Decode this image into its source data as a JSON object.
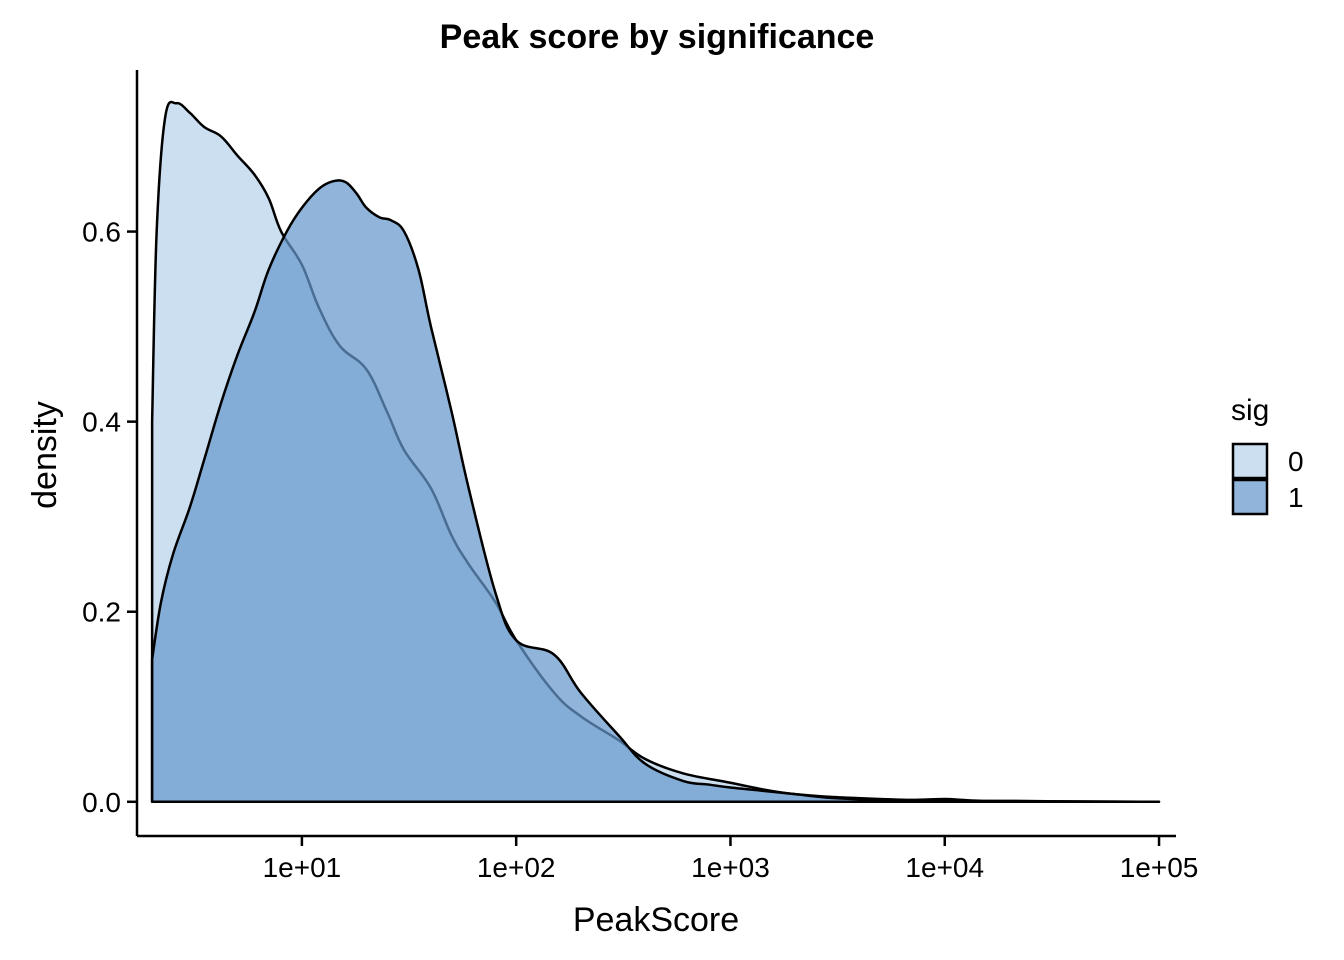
{
  "chart_data": {
    "type": "area",
    "title": "Peak score by significance",
    "xlabel": "PeakScore",
    "ylabel": "density",
    "x_scale": "log10",
    "xlim": [
      1.7,
      120000
    ],
    "ylim": [
      -0.036,
      0.77
    ],
    "x_ticks": [
      10,
      100,
      1000,
      10000,
      100000
    ],
    "x_tick_labels": [
      "1e+01",
      "1e+02",
      "1e+03",
      "1e+04",
      "1e+05"
    ],
    "y_ticks": [
      0.0,
      0.2,
      0.4,
      0.6
    ],
    "y_tick_labels": [
      "0.0",
      "0.2",
      "0.4",
      "0.6"
    ],
    "grid": false,
    "legend": {
      "title": "sig",
      "position": "right"
    },
    "series": [
      {
        "name": "0",
        "color": "#c6dbef",
        "opacity": 0.9,
        "x": [
          2.0,
          2.0,
          2.1,
          2.3,
          2.6,
          3.0,
          3.5,
          4.2,
          5.0,
          6.0,
          7.0,
          8.0,
          10.0,
          12.0,
          15.0,
          20.0,
          25.0,
          30.0,
          40.0,
          50.0,
          60.0,
          80.0,
          100.0,
          150.0,
          200.0,
          300.0,
          400.0,
          600.0,
          1000.0,
          1500.0,
          2000.0,
          3000.0,
          5000.0,
          7000.0,
          10000.0,
          12000.0,
          15000.0,
          20000.0,
          30000.0,
          50000.0,
          80000.0,
          100000.0
        ],
        "y": [
          0.0,
          0.4,
          0.6,
          0.72,
          0.735,
          0.725,
          0.71,
          0.7,
          0.68,
          0.66,
          0.635,
          0.6,
          0.565,
          0.52,
          0.48,
          0.455,
          0.41,
          0.37,
          0.33,
          0.28,
          0.25,
          0.21,
          0.17,
          0.115,
          0.09,
          0.065,
          0.045,
          0.03,
          0.02,
          0.012,
          0.008,
          0.005,
          0.003,
          0.002,
          0.003,
          0.002,
          0.001,
          0.001,
          0.0005,
          0.0003,
          0.0001,
          0.0
        ]
      },
      {
        "name": "1",
        "color": "#6699cc",
        "opacity": 0.72,
        "x": [
          2.0,
          2.0,
          2.2,
          2.5,
          3.0,
          3.5,
          4.2,
          5.0,
          6.0,
          7.0,
          8.5,
          10.0,
          12.0,
          14.0,
          16.0,
          18.0,
          20.0,
          23.0,
          26.0,
          30.0,
          35.0,
          40.0,
          50.0,
          60.0,
          80.0,
          100.0,
          150.0,
          200.0,
          300.0,
          400.0,
          600.0,
          800.0,
          1000.0,
          1500.0,
          2000.0,
          3000.0,
          5000.0,
          10000.0,
          20000.0,
          50000.0,
          100000.0
        ],
        "y": [
          0.0,
          0.15,
          0.21,
          0.26,
          0.31,
          0.36,
          0.42,
          0.47,
          0.515,
          0.56,
          0.6,
          0.625,
          0.645,
          0.653,
          0.652,
          0.64,
          0.625,
          0.615,
          0.612,
          0.6,
          0.56,
          0.5,
          0.41,
          0.33,
          0.22,
          0.17,
          0.155,
          0.115,
          0.07,
          0.04,
          0.022,
          0.018,
          0.015,
          0.011,
          0.008,
          0.004,
          0.002,
          0.001,
          0.0005,
          0.0002,
          0.0
        ]
      }
    ]
  }
}
